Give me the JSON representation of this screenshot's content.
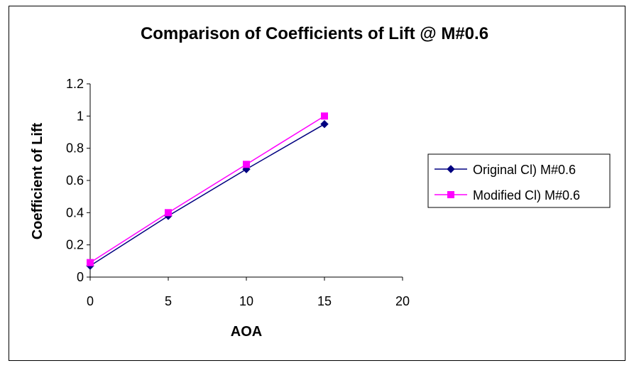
{
  "chart_data": {
    "type": "line",
    "title": "Comparison of Coefficients of Lift @ M#0.6",
    "xlabel": "AOA",
    "ylabel": "Coefficient of Lift",
    "xlim": [
      0,
      20
    ],
    "ylim": [
      0,
      1.2
    ],
    "xticks": [
      "0",
      "5",
      "10",
      "15",
      "20"
    ],
    "yticks": [
      "0",
      "0.2",
      "0.4",
      "0.6",
      "0.8",
      "1",
      "1.2"
    ],
    "grid": false,
    "legend_position": "right",
    "series": [
      {
        "name": "Original Cl) M#0.6",
        "color": "#000080",
        "marker": "diamond",
        "x": [
          0,
          5,
          10,
          15
        ],
        "y": [
          0.07,
          0.38,
          0.67,
          0.95
        ]
      },
      {
        "name": "Modified Cl) M#0.6",
        "color": "#FF00FF",
        "marker": "square",
        "x": [
          0,
          5,
          10,
          15
        ],
        "y": [
          0.09,
          0.4,
          0.7,
          1.0
        ]
      }
    ]
  }
}
